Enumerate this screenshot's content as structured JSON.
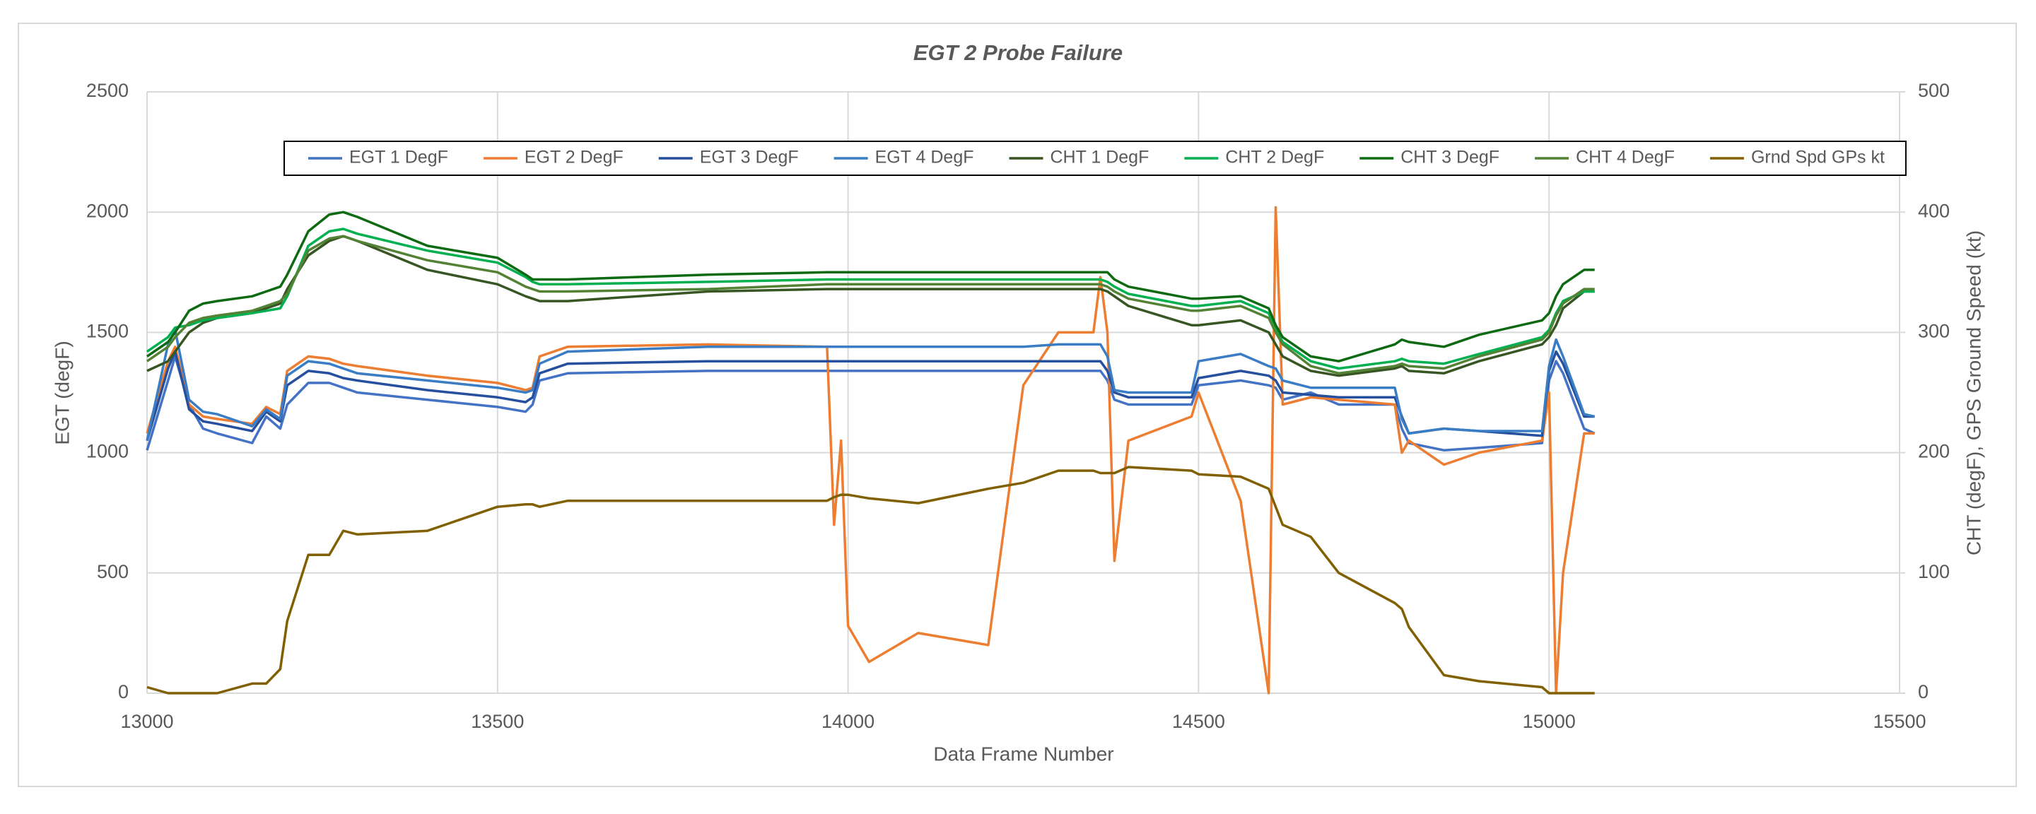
{
  "chart_data": {
    "type": "line",
    "title": "EGT 2 Probe Failure",
    "x_label": "Data Frame Number",
    "y_label": "EGT (degF)",
    "y2_label": "CHT (degF), GPS Ground Speed (kt)",
    "xlim": [
      13000,
      15500
    ],
    "xticks": [
      13000,
      13500,
      14000,
      14500,
      15000,
      15500
    ],
    "ylim": [
      0,
      2500
    ],
    "yticks": [
      0,
      500,
      1000,
      1500,
      2000,
      2500
    ],
    "y2lim": [
      0,
      500
    ],
    "y2ticks": [
      0,
      100,
      200,
      300,
      400,
      500
    ],
    "grid": true,
    "legend": "top",
    "x": [
      13000,
      13030,
      13040,
      13060,
      13080,
      13100,
      13150,
      13170,
      13190,
      13200,
      13230,
      13260,
      13280,
      13300,
      13400,
      13500,
      13540,
      13550,
      13560,
      13600,
      13800,
      13970,
      13980,
      13990,
      14000,
      14030,
      14100,
      14200,
      14250,
      14300,
      14350,
      14360,
      14370,
      14380,
      14400,
      14490,
      14500,
      14560,
      14600,
      14610,
      14620,
      14660,
      14700,
      14780,
      14790,
      14800,
      14850,
      14900,
      14990,
      15000,
      15010,
      15020,
      15050,
      15065
    ],
    "series": [
      {
        "name": "EGT 1 DegF",
        "color": "#4472c4",
        "values": [
          1010,
          1300,
          1400,
          1200,
          1100,
          1080,
          1040,
          1150,
          1100,
          1200,
          1290,
          1290,
          1270,
          1250,
          1220,
          1190,
          1170,
          1200,
          1300,
          1330,
          1340,
          1340,
          1340,
          1340,
          1340,
          1340,
          1340,
          1340,
          1340,
          1340,
          1340,
          1340,
          1300,
          1220,
          1200,
          1200,
          1280,
          1300,
          1280,
          1270,
          1220,
          1250,
          1200,
          1200,
          1100,
          1040,
          1010,
          1020,
          1040,
          1300,
          1380,
          1330,
          1100,
          1080
        ]
      },
      {
        "name": "EGT 2 DegF",
        "color": "#ed7d31",
        "values": [
          1080,
          1380,
          1440,
          1200,
          1150,
          1140,
          1120,
          1190,
          1160,
          1340,
          1400,
          1390,
          1370,
          1360,
          1320,
          1290,
          1260,
          1270,
          1400,
          1440,
          1450,
          1440,
          700,
          1050,
          280,
          130,
          250,
          200,
          1280,
          1500,
          1500,
          1730,
          1500,
          550,
          1050,
          1150,
          1250,
          800,
          0,
          2020,
          1200,
          1230,
          1220,
          1200,
          1000,
          1050,
          950,
          1000,
          1050,
          1250,
          0,
          500,
          1080,
          1080
        ]
      },
      {
        "name": "EGT 3 DegF",
        "color": "#264f9e",
        "values": [
          1050,
          1350,
          1420,
          1180,
          1130,
          1120,
          1090,
          1170,
          1130,
          1280,
          1340,
          1330,
          1310,
          1300,
          1260,
          1230,
          1210,
          1230,
          1330,
          1370,
          1380,
          1380,
          1380,
          1380,
          1380,
          1380,
          1380,
          1380,
          1380,
          1380,
          1380,
          1380,
          1340,
          1250,
          1230,
          1230,
          1310,
          1340,
          1320,
          1300,
          1250,
          1240,
          1230,
          1230,
          1150,
          1080,
          1100,
          1090,
          1070,
          1340,
          1420,
          1370,
          1150,
          1150
        ]
      },
      {
        "name": "EGT 4 DegF",
        "color": "#3a7dc4",
        "values": [
          1050,
          1450,
          1510,
          1220,
          1170,
          1160,
          1110,
          1180,
          1140,
          1320,
          1380,
          1370,
          1350,
          1330,
          1300,
          1270,
          1250,
          1260,
          1370,
          1420,
          1440,
          1440,
          1440,
          1440,
          1440,
          1440,
          1440,
          1440,
          1440,
          1450,
          1450,
          1450,
          1400,
          1260,
          1250,
          1250,
          1380,
          1410,
          1360,
          1350,
          1300,
          1270,
          1270,
          1270,
          1140,
          1080,
          1100,
          1090,
          1090,
          1360,
          1470,
          1400,
          1160,
          1150
        ]
      },
      {
        "name": "CHT 1 DegF",
        "color": "#375623",
        "axis": "y2",
        "values": [
          268,
          276,
          284,
          300,
          308,
          312,
          316,
          320,
          324,
          336,
          364,
          376,
          380,
          376,
          352,
          340,
          330,
          328,
          326,
          326,
          334,
          336,
          336,
          336,
          336,
          336,
          336,
          336,
          336,
          336,
          336,
          336,
          334,
          330,
          322,
          306,
          306,
          310,
          300,
          290,
          280,
          268,
          264,
          270,
          272,
          268,
          266,
          276,
          290,
          296,
          306,
          320,
          334,
          334
        ]
      },
      {
        "name": "CHT 2 DegF",
        "color": "#00b050",
        "axis": "y2",
        "values": [
          284,
          296,
          304,
          306,
          310,
          312,
          316,
          318,
          320,
          330,
          372,
          384,
          386,
          382,
          368,
          358,
          346,
          342,
          340,
          340,
          342,
          344,
          344,
          344,
          344,
          344,
          344,
          344,
          344,
          344,
          344,
          344,
          342,
          338,
          332,
          322,
          322,
          326,
          316,
          302,
          292,
          276,
          270,
          276,
          278,
          276,
          274,
          282,
          296,
          302,
          316,
          326,
          334,
          334
        ]
      },
      {
        "name": "CHT 3 DegF",
        "color": "#0e6a12",
        "axis": "y2",
        "values": [
          280,
          292,
          300,
          318,
          324,
          326,
          330,
          334,
          338,
          348,
          384,
          398,
          400,
          396,
          372,
          362,
          348,
          344,
          344,
          344,
          348,
          350,
          350,
          350,
          350,
          350,
          350,
          350,
          350,
          350,
          350,
          350,
          350,
          344,
          338,
          328,
          328,
          330,
          320,
          306,
          296,
          280,
          276,
          290,
          294,
          292,
          288,
          298,
          310,
          316,
          330,
          340,
          352,
          352
        ]
      },
      {
        "name": "CHT 4 DegF",
        "color": "#548235",
        "axis": "y2",
        "values": [
          276,
          288,
          296,
          308,
          312,
          314,
          318,
          322,
          326,
          332,
          368,
          378,
          380,
          376,
          360,
          350,
          338,
          336,
          334,
          334,
          336,
          340,
          340,
          340,
          340,
          340,
          340,
          340,
          340,
          340,
          340,
          340,
          338,
          334,
          328,
          318,
          318,
          322,
          312,
          300,
          290,
          272,
          266,
          272,
          274,
          272,
          270,
          280,
          294,
          300,
          314,
          324,
          336,
          336
        ]
      },
      {
        "name": "Grnd Spd GPs kt",
        "color": "#806000",
        "axis": "y2",
        "values": [
          5,
          0,
          0,
          0,
          0,
          0,
          8,
          8,
          20,
          60,
          115,
          115,
          135,
          132,
          135,
          155,
          157,
          157,
          155,
          160,
          160,
          160,
          163,
          165,
          165,
          162,
          158,
          170,
          175,
          185,
          185,
          183,
          183,
          183,
          188,
          185,
          182,
          180,
          170,
          155,
          140,
          130,
          100,
          75,
          70,
          55,
          15,
          10,
          5,
          0,
          0,
          0,
          0,
          0
        ]
      }
    ]
  }
}
